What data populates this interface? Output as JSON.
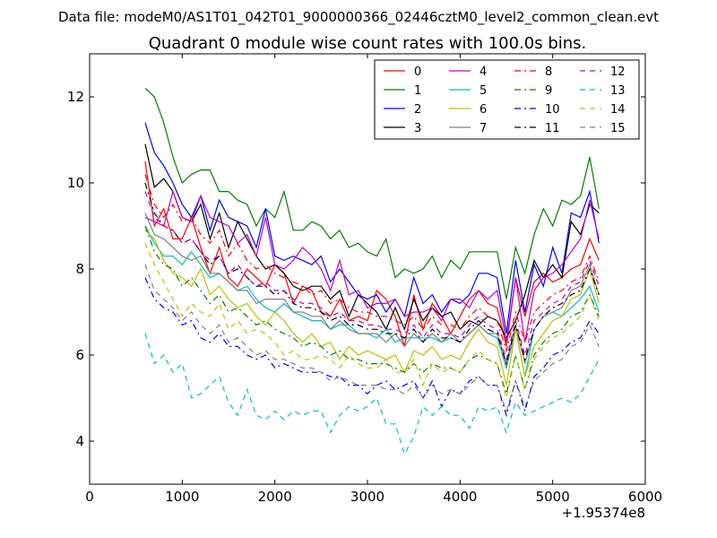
{
  "chart_data": {
    "type": "line",
    "suptitle": "Data file: modeM0/AS1T01_042T01_9000000366_02446cztM0_level2_common_clean.evt",
    "title": "Quadrant 0 module wise count rates with 100.0s bins.",
    "xlabel": "",
    "ylabel": "",
    "x_offset_label": "+1.95374e8",
    "xlim": [
      0,
      6000
    ],
    "ylim": [
      3,
      13
    ],
    "xticks": [
      0,
      1000,
      2000,
      3000,
      4000,
      5000,
      6000
    ],
    "yticks": [
      4,
      6,
      8,
      10,
      12
    ],
    "grid": false,
    "legend_position": "top-right",
    "legend_columns": 4,
    "x": [
      600,
      700,
      800,
      900,
      1000,
      1100,
      1200,
      1300,
      1400,
      1500,
      1600,
      1700,
      1800,
      1900,
      2000,
      2100,
      2200,
      2300,
      2400,
      2500,
      2600,
      2700,
      2800,
      2900,
      3000,
      3100,
      3200,
      3300,
      3400,
      3500,
      3600,
      3700,
      3800,
      3900,
      4000,
      4100,
      4200,
      4300,
      4400,
      4500,
      4600,
      4700,
      4800,
      4900,
      5000,
      5100,
      5200,
      5300,
      5400,
      5500
    ],
    "series": [
      {
        "name": "0",
        "color": "#ff0000",
        "style": "solid",
        "values": [
          10.5,
          9.0,
          9.4,
          8.7,
          8.7,
          9.2,
          8.5,
          7.9,
          8.5,
          7.8,
          7.6,
          8.0,
          7.8,
          7.6,
          8.1,
          7.9,
          7.2,
          7.6,
          7.5,
          7.0,
          6.9,
          7.3,
          6.8,
          6.9,
          6.8,
          7.5,
          7.3,
          6.9,
          6.2,
          7.4,
          6.6,
          7.2,
          6.9,
          6.5,
          6.9,
          7.3,
          7.5,
          7.2,
          7.1,
          6.2,
          7.8,
          6.9,
          7.7,
          7.9,
          7.7,
          7.8,
          8.0,
          8.1,
          8.7,
          8.2
        ]
      },
      {
        "name": "1",
        "color": "#008000",
        "style": "solid",
        "values": [
          12.2,
          12.0,
          11.4,
          10.6,
          10.0,
          10.2,
          10.3,
          10.3,
          9.8,
          9.8,
          9.6,
          9.5,
          9.0,
          9.4,
          9.2,
          9.8,
          8.9,
          8.9,
          9.1,
          9.0,
          8.7,
          8.9,
          8.5,
          8.6,
          8.4,
          8.3,
          8.7,
          7.8,
          8.0,
          7.9,
          8.0,
          8.3,
          7.8,
          8.2,
          8.0,
          8.4,
          8.4,
          8.4,
          8.4,
          7.3,
          8.5,
          7.9,
          8.8,
          9.4,
          9.0,
          9.6,
          9.5,
          9.7,
          10.6,
          9.4
        ]
      },
      {
        "name": "2",
        "color": "#0000ff",
        "style": "solid",
        "values": [
          11.4,
          10.7,
          10.4,
          10.0,
          9.5,
          9.2,
          9.7,
          8.9,
          9.6,
          9.2,
          9.1,
          9.0,
          8.5,
          9.4,
          8.3,
          8.2,
          8.3,
          8.2,
          8.1,
          8.3,
          7.7,
          8.0,
          7.7,
          7.4,
          7.3,
          7.4,
          7.0,
          7.3,
          6.9,
          7.8,
          7.2,
          7.4,
          7.0,
          7.3,
          7.2,
          7.4,
          7.9,
          7.9,
          7.8,
          6.5,
          8.2,
          7.0,
          8.1,
          7.6,
          8.5,
          7.9,
          9.3,
          9.2,
          9.8,
          8.6
        ]
      },
      {
        "name": "3",
        "color": "#000000",
        "style": "solid",
        "values": [
          10.9,
          9.9,
          10.1,
          9.8,
          9.2,
          9.1,
          9.5,
          8.7,
          9.3,
          8.5,
          9.1,
          8.7,
          8.3,
          8.0,
          8.1,
          7.9,
          7.6,
          7.5,
          7.6,
          7.6,
          7.3,
          7.5,
          6.9,
          7.4,
          7.2,
          7.0,
          6.6,
          7.1,
          6.6,
          7.3,
          6.8,
          7.1,
          6.9,
          7.0,
          6.6,
          6.8,
          6.7,
          6.9,
          6.8,
          6.4,
          6.8,
          7.4,
          8.2,
          7.8,
          8.1,
          7.8,
          9.1,
          8.8,
          9.5,
          9.3
        ]
      },
      {
        "name": "4",
        "color": "#bf00bf",
        "style": "solid",
        "values": [
          9.2,
          9.1,
          9.0,
          9.8,
          9.2,
          9.1,
          9.7,
          9.2,
          9.1,
          9.0,
          8.6,
          8.8,
          8.3,
          9.2,
          8.1,
          8.0,
          8.2,
          8.5,
          8.3,
          8.0,
          7.5,
          8.2,
          7.4,
          7.5,
          7.1,
          7.2,
          7.2,
          7.3,
          6.9,
          7.0,
          7.0,
          7.1,
          6.8,
          7.3,
          7.3,
          7.1,
          7.5,
          7.3,
          7.5,
          6.3,
          7.8,
          6.3,
          7.5,
          7.8,
          7.9,
          8.1,
          8.4,
          8.7,
          9.6,
          8.7
        ]
      },
      {
        "name": "5",
        "color": "#00bfbf",
        "style": "solid",
        "values": [
          9.0,
          8.6,
          8.3,
          8.3,
          8.1,
          8.4,
          8.1,
          7.8,
          7.9,
          7.7,
          7.5,
          7.6,
          7.3,
          7.1,
          7.0,
          7.2,
          7.0,
          6.9,
          6.8,
          6.8,
          6.6,
          6.7,
          6.7,
          6.5,
          6.5,
          6.4,
          6.6,
          6.3,
          6.4,
          6.4,
          6.4,
          6.4,
          6.3,
          6.4,
          6.3,
          6.5,
          6.7,
          6.5,
          6.4,
          5.7,
          6.6,
          5.5,
          6.6,
          6.9,
          7.0,
          6.9,
          7.1,
          7.3,
          7.6,
          7.0
        ]
      },
      {
        "name": "6",
        "color": "#bfbf00",
        "style": "solid",
        "values": [
          8.9,
          8.7,
          8.2,
          7.9,
          7.8,
          7.6,
          8.0,
          7.4,
          7.6,
          7.3,
          7.1,
          7.2,
          6.9,
          6.7,
          7.0,
          6.8,
          6.5,
          6.3,
          6.5,
          6.2,
          6.3,
          5.9,
          6.2,
          6.0,
          6.1,
          6.0,
          5.9,
          6.0,
          5.6,
          6.1,
          6.0,
          6.2,
          5.9,
          6.0,
          5.9,
          6.3,
          6.6,
          6.3,
          6.2,
          5.3,
          6.6,
          5.5,
          6.2,
          6.5,
          6.8,
          6.9,
          7.3,
          7.4,
          8.0,
          7.2
        ]
      },
      {
        "name": "7",
        "color": "#808080",
        "style": "solid",
        "values": [
          9.3,
          8.8,
          8.7,
          8.5,
          8.3,
          8.2,
          8.3,
          7.9,
          7.9,
          7.7,
          7.5,
          7.5,
          7.2,
          7.3,
          7.3,
          7.3,
          7.0,
          7.0,
          6.9,
          6.9,
          6.6,
          6.8,
          6.6,
          6.5,
          6.5,
          6.5,
          6.3,
          6.5,
          6.2,
          6.5,
          6.3,
          6.5,
          6.3,
          6.5,
          6.3,
          6.5,
          6.7,
          6.5,
          6.5,
          5.8,
          6.7,
          5.8,
          6.6,
          6.9,
          7.0,
          7.1,
          7.5,
          7.6,
          8.1,
          7.4
        ]
      },
      {
        "name": "8",
        "color": "#ff0000",
        "style": "dashdot",
        "values": [
          10.2,
          9.5,
          9.2,
          9.5,
          9.1,
          9.2,
          8.8,
          8.6,
          8.9,
          8.3,
          8.6,
          8.2,
          8.0,
          8.1,
          7.9,
          7.8,
          7.7,
          7.6,
          7.4,
          7.5,
          7.2,
          7.3,
          7.1,
          7.0,
          7.0,
          6.9,
          6.9,
          6.8,
          6.7,
          6.9,
          6.6,
          6.9,
          6.7,
          6.7,
          6.6,
          6.9,
          7.1,
          6.9,
          6.8,
          6.1,
          7.0,
          6.3,
          7.0,
          7.2,
          7.4,
          7.5,
          7.7,
          7.8,
          8.3,
          7.7
        ]
      },
      {
        "name": "9",
        "color": "#008000",
        "style": "dashdot",
        "values": [
          9.0,
          8.4,
          8.1,
          8.0,
          7.6,
          7.8,
          7.5,
          7.2,
          7.4,
          7.0,
          7.1,
          6.9,
          6.7,
          6.8,
          6.6,
          6.5,
          6.4,
          6.2,
          6.3,
          6.2,
          6.0,
          6.1,
          5.9,
          5.9,
          5.8,
          5.8,
          5.8,
          5.7,
          5.6,
          5.8,
          5.6,
          5.8,
          5.7,
          5.7,
          5.6,
          5.9,
          6.0,
          5.9,
          5.8,
          5.1,
          6.0,
          5.2,
          6.0,
          6.3,
          6.5,
          6.6,
          6.9,
          7.0,
          7.4,
          6.9
        ]
      },
      {
        "name": "10",
        "color": "#0000ff",
        "style": "dashdot",
        "values": [
          7.8,
          7.3,
          7.1,
          7.0,
          6.7,
          6.8,
          6.4,
          6.3,
          6.5,
          6.2,
          6.2,
          6.0,
          5.9,
          6.0,
          5.7,
          5.8,
          5.7,
          5.6,
          5.6,
          5.6,
          5.5,
          5.5,
          5.3,
          5.3,
          5.1,
          5.3,
          5.4,
          5.2,
          5.3,
          5.4,
          5.0,
          5.4,
          4.8,
          5.2,
          5.1,
          5.4,
          5.5,
          5.3,
          5.3,
          4.6,
          5.4,
          4.7,
          5.5,
          5.7,
          6.0,
          6.1,
          6.3,
          6.4,
          6.8,
          6.5
        ]
      },
      {
        "name": "11",
        "color": "#000000",
        "style": "dashdot",
        "values": [
          10.0,
          9.3,
          9.0,
          8.9,
          8.6,
          8.7,
          8.4,
          8.1,
          8.3,
          7.9,
          8.0,
          7.8,
          7.6,
          7.6,
          7.4,
          7.5,
          7.2,
          7.1,
          7.1,
          7.0,
          6.8,
          6.9,
          6.7,
          6.7,
          6.6,
          6.6,
          6.5,
          6.5,
          6.4,
          6.6,
          6.3,
          6.6,
          6.4,
          6.4,
          6.3,
          6.6,
          6.8,
          6.6,
          6.5,
          5.8,
          6.7,
          5.9,
          6.6,
          6.9,
          7.1,
          7.2,
          7.4,
          7.5,
          8.0,
          7.4
        ]
      },
      {
        "name": "12",
        "color": "#bf00bf",
        "style": "dashed",
        "values": [
          9.8,
          9.2,
          9.0,
          8.9,
          8.6,
          8.7,
          8.4,
          8.2,
          8.3,
          7.9,
          8.1,
          7.8,
          7.6,
          7.7,
          7.5,
          7.5,
          7.3,
          7.2,
          7.2,
          7.1,
          6.9,
          7.0,
          6.8,
          6.8,
          6.7,
          6.7,
          6.6,
          6.6,
          6.5,
          6.7,
          6.4,
          6.7,
          6.5,
          6.5,
          6.4,
          6.7,
          6.9,
          6.7,
          6.6,
          5.9,
          6.8,
          6.0,
          6.8,
          7.0,
          7.2,
          7.3,
          7.6,
          7.7,
          8.2,
          7.6
        ]
      },
      {
        "name": "13",
        "color": "#00bfbf",
        "style": "dashed",
        "values": [
          6.5,
          5.8,
          6.0,
          5.6,
          5.8,
          5.0,
          5.1,
          5.3,
          5.5,
          4.9,
          4.6,
          5.2,
          4.6,
          4.5,
          4.7,
          4.5,
          4.7,
          4.6,
          4.7,
          4.7,
          4.2,
          4.6,
          4.8,
          4.7,
          4.8,
          5.0,
          4.4,
          4.4,
          3.7,
          4.1,
          4.8,
          4.6,
          4.8,
          4.6,
          4.6,
          4.3,
          4.8,
          4.7,
          4.8,
          4.2,
          4.9,
          4.6,
          4.7,
          4.8,
          4.9,
          5.0,
          4.9,
          5.1,
          5.5,
          5.9
        ]
      },
      {
        "name": "14",
        "color": "#bfbf00",
        "style": "dashed",
        "values": [
          8.6,
          8.1,
          7.7,
          7.3,
          6.9,
          7.2,
          7.0,
          6.9,
          7.2,
          6.6,
          6.8,
          6.5,
          6.6,
          6.5,
          6.3,
          6.0,
          6.1,
          5.9,
          5.9,
          6.0,
          5.9,
          5.7,
          6.0,
          5.8,
          5.7,
          5.7,
          5.9,
          5.6,
          5.6,
          5.9,
          5.3,
          5.8,
          5.6,
          5.7,
          5.6,
          5.9,
          6.1,
          5.9,
          5.8,
          5.0,
          6.0,
          5.2,
          5.9,
          6.2,
          6.4,
          6.5,
          6.7,
          6.9,
          7.4,
          6.8
        ]
      },
      {
        "name": "15",
        "color": "#808080",
        "style": "dashed",
        "values": [
          8.1,
          7.5,
          7.3,
          7.1,
          6.8,
          7.0,
          6.7,
          6.5,
          6.7,
          6.3,
          6.4,
          6.2,
          6.0,
          6.1,
          5.9,
          5.9,
          5.8,
          5.7,
          5.7,
          5.6,
          5.4,
          5.5,
          5.4,
          5.3,
          5.3,
          5.3,
          5.2,
          5.2,
          5.1,
          5.3,
          5.0,
          5.3,
          5.1,
          5.2,
          5.1,
          5.3,
          5.5,
          5.3,
          5.3,
          4.7,
          5.4,
          4.8,
          5.4,
          5.6,
          5.8,
          5.9,
          6.2,
          6.3,
          6.7,
          6.2
        ]
      }
    ]
  }
}
